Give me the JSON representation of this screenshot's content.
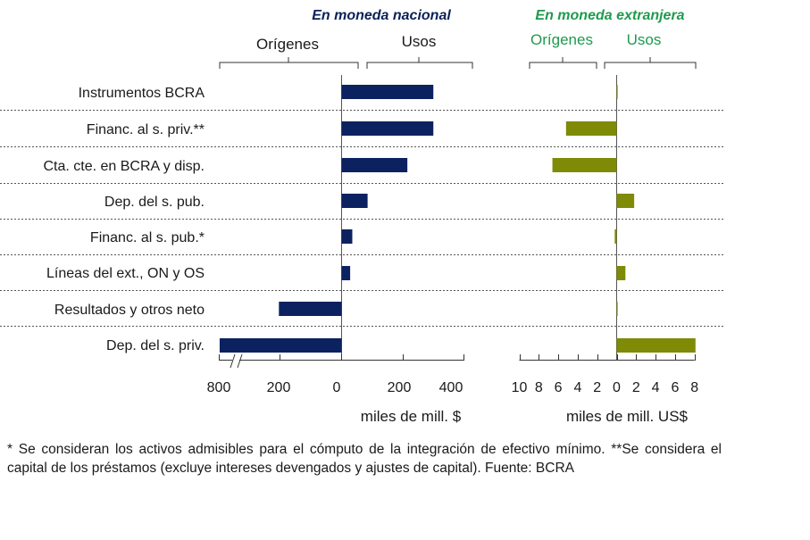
{
  "chart_data": {
    "type": "bar",
    "orientation": "horizontal",
    "categories": [
      "Instrumentos BCRA",
      "Financ. al s. priv.**",
      "Cta. cte. en BCRA y disp.",
      "Dep. del s. pub.",
      "Financ. al s. pub.*",
      "Líneas del ext., ON y OS",
      "Resultados y otros neto",
      "Dep. del s. priv."
    ],
    "panels": [
      {
        "title": "En moneda nacional",
        "title_color": "#0b2256",
        "left_label": "Orígenes",
        "right_label": "Usos",
        "subheader_color": "#1a1a1a",
        "bar_color": "#0c2260",
        "unit": "miles de mill. $",
        "left_ticks": [
          "800",
          "200",
          "0"
        ],
        "right_ticks": [
          "200",
          "400"
        ],
        "axis_break": true,
        "values": [
          300,
          300,
          215,
          85,
          35,
          28,
          -205,
          -795
        ]
      },
      {
        "title": "En moneda extranjera",
        "title_color": "#1e9b4e",
        "left_label": "Orígenes",
        "right_label": "Usos",
        "subheader_color": "#1e9b4e",
        "bar_color": "#7f8a06",
        "unit": "miles de mill. US$",
        "ticks": [
          "10",
          "8",
          "6",
          "4",
          "2",
          "0",
          "2",
          "4",
          "6",
          "8"
        ],
        "xlim": [
          -10,
          8
        ],
        "values": [
          0.1,
          -5.2,
          -6.6,
          1.8,
          -0.2,
          0.9,
          0.1,
          8.1
        ]
      }
    ]
  },
  "footnote": "* Se consideran los activos admisibles para el cómputo de la integración de efectivo mínimo. **Se considera el capital de los préstamos (excluye intereses devengados y ajustes de capital). Fuente: BCRA"
}
